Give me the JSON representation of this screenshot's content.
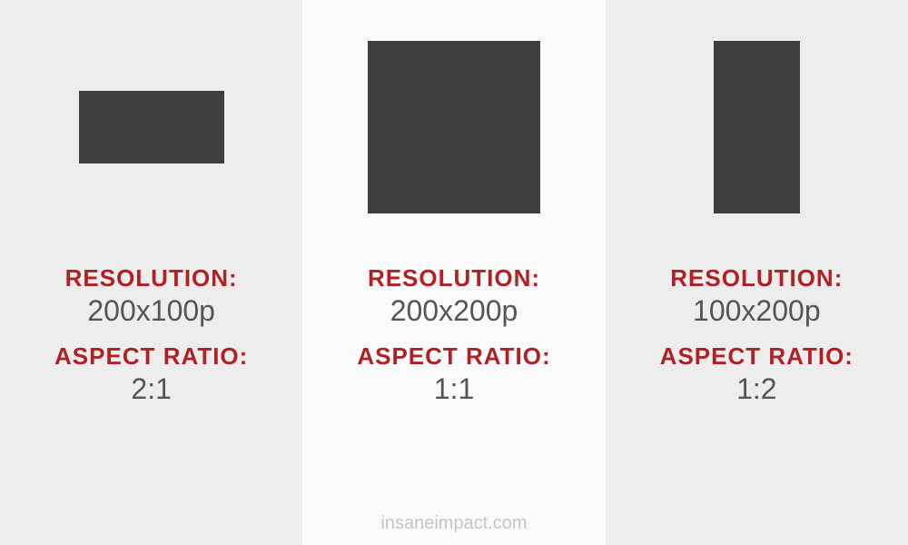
{
  "infographic": {
    "type": "infographic",
    "background_colors": [
      "#ededed",
      "#fafafa",
      "#ededed"
    ],
    "shape_fill": "#3f3f3f",
    "label_color": "#b02024",
    "value_color": "#555555",
    "watermark_color": "#c5c5c5",
    "label_fontsize": 26,
    "value_fontsize": 32,
    "label_fontweight": 800,
    "panels": [
      {
        "shape_width": 160,
        "shape_height": 80,
        "resolution_label": "RESOLUTION:",
        "resolution_value": "200x100p",
        "aspect_label": "ASPECT RATIO:",
        "aspect_value": "2:1"
      },
      {
        "shape_width": 190,
        "shape_height": 190,
        "resolution_label": "RESOLUTION:",
        "resolution_value": "200x200p",
        "aspect_label": "ASPECT RATIO:",
        "aspect_value": "1:1"
      },
      {
        "shape_width": 95,
        "shape_height": 190,
        "resolution_label": "RESOLUTION:",
        "resolution_value": "100x200p",
        "aspect_label": "ASPECT RATIO:",
        "aspect_value": "1:2"
      }
    ],
    "watermark": "insaneimpact.com"
  }
}
